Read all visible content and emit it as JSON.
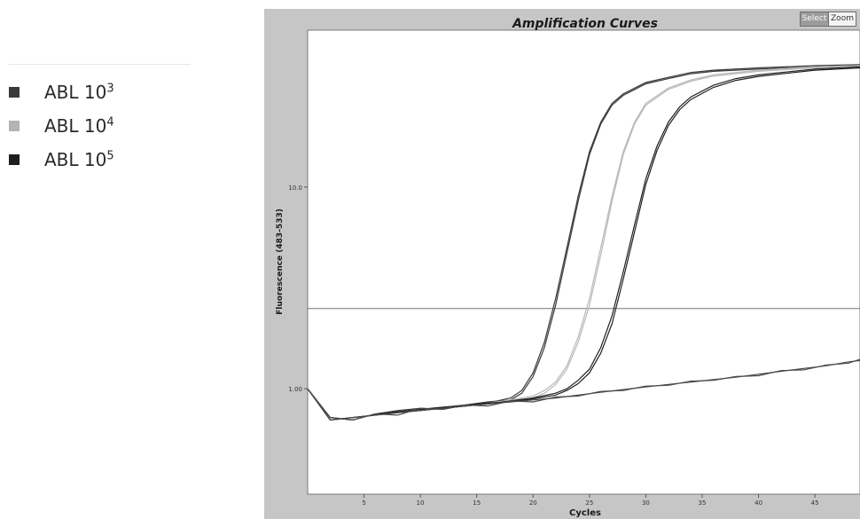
{
  "legend": {
    "items": [
      {
        "base": "ABL 10",
        "exp": "3",
        "color": "#3a3a3a"
      },
      {
        "base": "ABL 10",
        "exp": "4",
        "color": "#b4b4b4"
      },
      {
        "base": "ABL 10",
        "exp": "5",
        "color": "#1e1e1e"
      }
    ]
  },
  "toolbar": {
    "select_label": "Select",
    "zoom_label": "Zoom"
  },
  "chart_data": {
    "type": "line",
    "title": "Amplification Curves",
    "xlabel": "Cycles",
    "ylabel": "Fluorescence (483-533)",
    "xlim": [
      0,
      49
    ],
    "x_ticks": [
      5,
      10,
      15,
      20,
      25,
      30,
      35,
      40,
      45
    ],
    "y_scale": "log",
    "y_ticks": [
      {
        "value": 1.0,
        "label": "1.00"
      },
      {
        "value": 10.0,
        "label": "10.0"
      }
    ],
    "ylim": [
      0.3,
      60
    ],
    "threshold": 2.5,
    "series": [
      {
        "color": "#3a3a3a",
        "curves": [
          {
            "x": [
              0,
              2,
              4,
              6,
              8,
              10,
              12,
              14,
              16,
              18,
              19,
              20,
              21,
              22,
              23,
              24,
              25,
              26,
              27,
              28,
              30,
              32,
              34,
              36,
              40,
              45,
              49
            ],
            "y": [
              1.0,
              0.7,
              0.72,
              0.74,
              0.76,
              0.78,
              0.8,
              0.82,
              0.85,
              0.9,
              0.98,
              1.2,
              1.7,
              2.8,
              5.0,
              9.0,
              15.0,
              21.0,
              26.0,
              29.0,
              33.0,
              35.0,
              37.0,
              38.0,
              39.0,
              40.0,
              40.5
            ]
          },
          {
            "x": [
              0,
              2,
              4,
              6,
              8,
              10,
              12,
              14,
              16,
              18,
              19,
              20,
              21,
              22,
              23,
              24,
              25,
              26,
              27,
              28,
              30,
              32,
              34,
              36,
              40,
              45,
              49
            ],
            "y": [
              1.0,
              0.72,
              0.7,
              0.75,
              0.78,
              0.8,
              0.79,
              0.83,
              0.86,
              0.88,
              0.95,
              1.15,
              1.6,
              2.6,
              4.7,
              8.5,
              14.5,
              20.5,
              25.5,
              28.5,
              32.5,
              34.5,
              36.5,
              37.5,
              38.5,
              39.5,
              40.0
            ]
          }
        ]
      },
      {
        "color": "#b8b8b8",
        "curves": [
          {
            "x": [
              0,
              2,
              4,
              6,
              8,
              10,
              12,
              14,
              16,
              18,
              20,
              21,
              22,
              23,
              24,
              25,
              26,
              27,
              28,
              29,
              30,
              32,
              34,
              36,
              40,
              45,
              49
            ],
            "y": [
              1.0,
              0.7,
              0.72,
              0.74,
              0.76,
              0.78,
              0.8,
              0.82,
              0.85,
              0.88,
              0.92,
              0.98,
              1.08,
              1.3,
              1.8,
              2.8,
              5.0,
              9.0,
              15.0,
              21.0,
              26.0,
              31.0,
              34.0,
              36.0,
              38.0,
              39.5,
              40.0
            ]
          },
          {
            "x": [
              0,
              2,
              4,
              6,
              8,
              10,
              12,
              14,
              16,
              18,
              20,
              21,
              22,
              23,
              24,
              25,
              26,
              27,
              28,
              29,
              30,
              32,
              34,
              36,
              40,
              45,
              49
            ],
            "y": [
              1.0,
              0.72,
              0.7,
              0.75,
              0.77,
              0.79,
              0.81,
              0.83,
              0.84,
              0.87,
              0.9,
              0.95,
              1.05,
              1.25,
              1.7,
              2.6,
              4.6,
              8.5,
              14.5,
              20.5,
              25.5,
              30.5,
              33.5,
              35.5,
              37.5,
              39.0,
              39.5
            ]
          }
        ]
      },
      {
        "color": "#202020",
        "curves": [
          {
            "x": [
              0,
              2,
              4,
              6,
              8,
              10,
              12,
              14,
              16,
              18,
              20,
              22,
              23,
              24,
              25,
              26,
              27,
              28,
              29,
              30,
              31,
              32,
              33,
              34,
              36,
              38,
              40,
              45,
              49
            ],
            "y": [
              1.0,
              0.7,
              0.72,
              0.74,
              0.76,
              0.78,
              0.8,
              0.82,
              0.84,
              0.87,
              0.9,
              0.95,
              1.0,
              1.1,
              1.25,
              1.6,
              2.3,
              3.8,
              6.5,
              11.0,
              16.0,
              21.0,
              25.0,
              28.0,
              32.0,
              34.5,
              36.0,
              38.5,
              39.5
            ]
          },
          {
            "x": [
              0,
              2,
              4,
              6,
              8,
              10,
              12,
              14,
              16,
              18,
              20,
              22,
              23,
              24,
              25,
              26,
              27,
              28,
              29,
              30,
              31,
              32,
              33,
              34,
              36,
              38,
              40,
              45,
              49
            ],
            "y": [
              1.0,
              0.72,
              0.7,
              0.75,
              0.77,
              0.79,
              0.81,
              0.83,
              0.85,
              0.86,
              0.89,
              0.93,
              0.98,
              1.06,
              1.2,
              1.5,
              2.1,
              3.5,
              6.0,
              10.3,
              15.2,
              20.2,
              24.2,
              27.2,
              31.2,
              33.8,
              35.4,
              38.0,
              39.0
            ]
          }
        ]
      },
      {
        "color": "#4a4a4a",
        "curves": [
          {
            "x": [
              0,
              2,
              4,
              6,
              8,
              10,
              12,
              14,
              16,
              18,
              20,
              22,
              24,
              26,
              28,
              30,
              32,
              34,
              36,
              38,
              40,
              42,
              44,
              46,
              48,
              49
            ],
            "y": [
              1.0,
              0.7,
              0.72,
              0.74,
              0.76,
              0.78,
              0.8,
              0.82,
              0.84,
              0.86,
              0.88,
              0.9,
              0.93,
              0.96,
              0.99,
              1.02,
              1.05,
              1.08,
              1.11,
              1.14,
              1.18,
              1.22,
              1.26,
              1.3,
              1.36,
              1.38
            ]
          },
          {
            "x": [
              0,
              2,
              4,
              6,
              8,
              10,
              12,
              14,
              16,
              18,
              20,
              22,
              24,
              26,
              28,
              30,
              32,
              34,
              36,
              38,
              40,
              42,
              44,
              46,
              48,
              49
            ],
            "y": [
              1.0,
              0.72,
              0.7,
              0.75,
              0.74,
              0.8,
              0.79,
              0.83,
              0.82,
              0.87,
              0.86,
              0.91,
              0.92,
              0.97,
              0.98,
              1.03,
              1.04,
              1.09,
              1.1,
              1.15,
              1.16,
              1.23,
              1.24,
              1.31,
              1.34,
              1.4
            ]
          }
        ]
      }
    ]
  }
}
